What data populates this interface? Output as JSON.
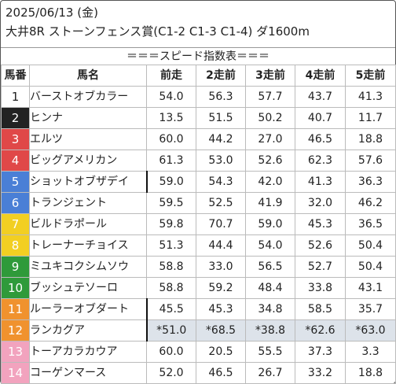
{
  "header": {
    "date": "2025/06/13 (金)",
    "race": "大井8R ストーンフェンス賞(C1-2 C1-3 C1-4) ダ1600m",
    "banner": "＝＝＝スピード指数表＝＝＝"
  },
  "columns": [
    "馬番",
    "馬名",
    "前走",
    "2走前",
    "3走前",
    "4走前",
    "5走前"
  ],
  "colors": {
    "frame_1": "#ffffff",
    "frame_2": "#222222",
    "frame_3": "#e04848",
    "frame_4": "#4a7fd6",
    "frame_5": "#f2cf22",
    "frame_6": "#2f9a3a",
    "frame_7": "#f0922e",
    "frame_8": "#f2a3be",
    "highlight_row": "#dde3ea"
  },
  "rows": [
    {
      "num": "1",
      "name": "バーストオブカラー",
      "v": [
        "54.0",
        "56.3",
        "57.7",
        "43.7",
        "41.3"
      ]
    },
    {
      "num": "2",
      "name": "ヒンナ",
      "v": [
        "13.5",
        "51.5",
        "50.2",
        "40.7",
        "11.7"
      ]
    },
    {
      "num": "3",
      "name": "エルツ",
      "v": [
        "60.0",
        "44.2",
        "27.0",
        "46.5",
        "18.8"
      ]
    },
    {
      "num": "4",
      "name": "ビッグアメリカン",
      "v": [
        "61.3",
        "53.0",
        "52.6",
        "62.3",
        "57.6"
      ]
    },
    {
      "num": "5",
      "name": "ショットオブザデイ",
      "v": [
        "59.0",
        "54.3",
        "42.0",
        "41.3",
        "36.3"
      ]
    },
    {
      "num": "6",
      "name": "トランジェント",
      "v": [
        "59.5",
        "52.5",
        "41.9",
        "32.0",
        "46.2"
      ]
    },
    {
      "num": "7",
      "name": "ビルドラポール",
      "v": [
        "59.8",
        "70.7",
        "59.0",
        "45.3",
        "36.5"
      ]
    },
    {
      "num": "8",
      "name": "トレーナーチョイス",
      "v": [
        "51.3",
        "44.4",
        "54.0",
        "52.6",
        "50.4"
      ]
    },
    {
      "num": "9",
      "name": "ミユキコクシムソウ",
      "v": [
        "58.8",
        "33.0",
        "56.5",
        "52.7",
        "50.4"
      ]
    },
    {
      "num": "10",
      "name": "ブッシュテソーロ",
      "v": [
        "58.8",
        "59.2",
        "48.4",
        "33.8",
        "43.1"
      ]
    },
    {
      "num": "11",
      "name": "ルーラーオブダート",
      "v": [
        "45.5",
        "45.3",
        "34.8",
        "58.5",
        "35.7"
      ]
    },
    {
      "num": "12",
      "name": "ランカグア",
      "v": [
        "*51.0",
        "*68.5",
        "*38.8",
        "*62.6",
        "*63.0"
      ]
    },
    {
      "num": "13",
      "name": "トーアカラカウア",
      "v": [
        "60.0",
        "20.5",
        "55.5",
        "37.3",
        "3.3"
      ]
    },
    {
      "num": "14",
      "name": "コーゲンマース",
      "v": [
        "52.0",
        "46.5",
        "26.7",
        "33.2",
        "18.8"
      ]
    }
  ]
}
